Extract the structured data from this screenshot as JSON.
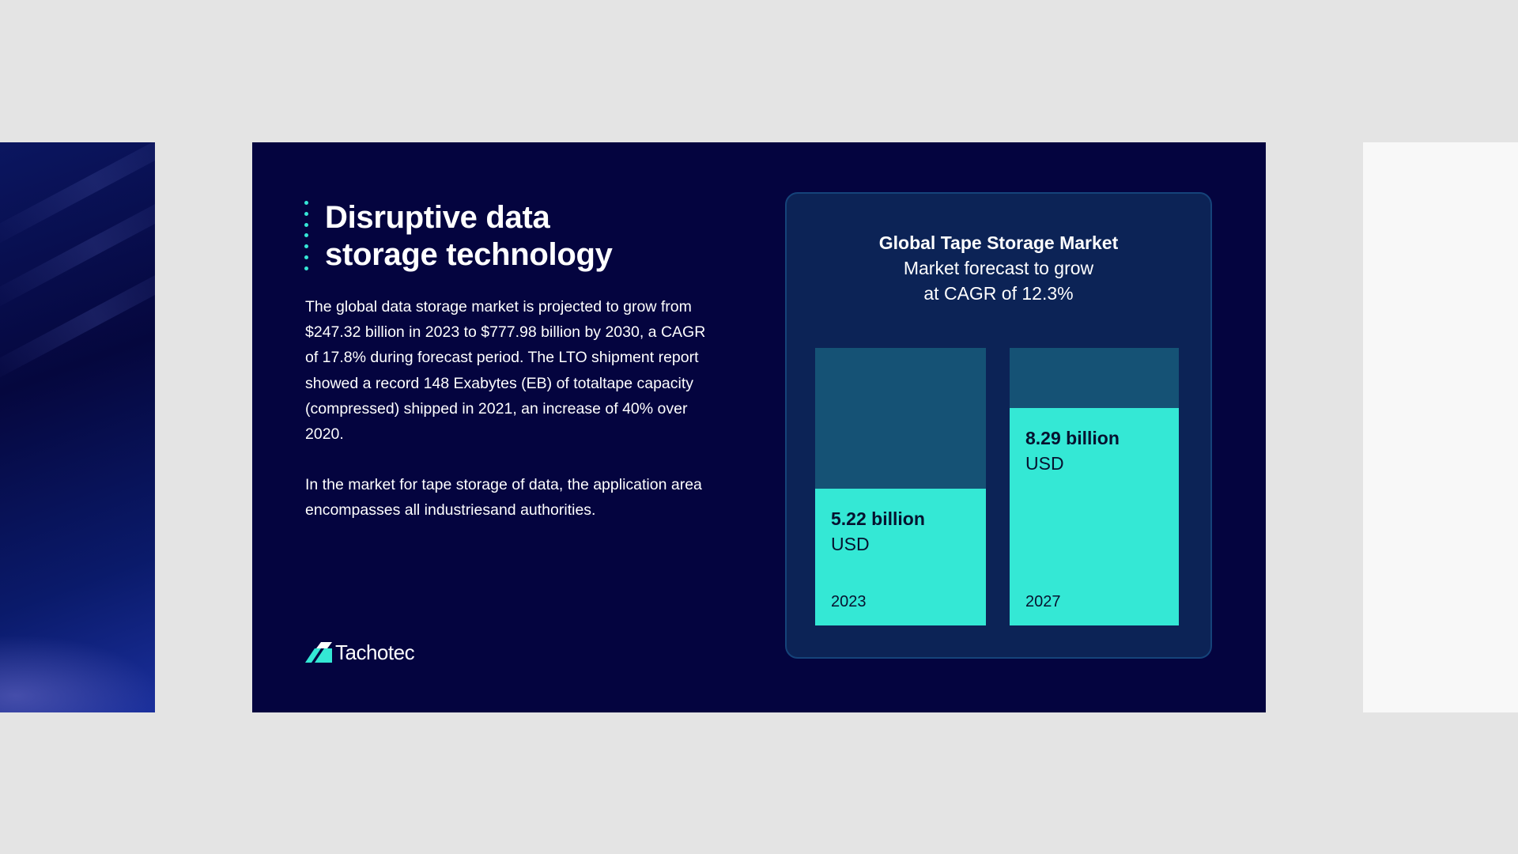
{
  "slide": {
    "title_line1": "Disruptive data",
    "title_line2": "storage technology",
    "paragraph1": "The global data storage market is projected to grow from $247.32 billion in 2023 to $777.98 billion by 2030, a CAGR of 17.8% during forecast period. The LTO shipment report showed a record 148 Exabytes (EB) of totaltape capacity (compressed) shipped in 2021, an increase of 40% over 2020.",
    "paragraph2": "In the market for tape storage of data, the application area encompasses all industriesand authorities.",
    "logo_text": "Tachotec"
  },
  "colors": {
    "slide_bg": "#04043f",
    "accent": "#34e8d5",
    "card_bg": "#0c2356",
    "bar_track": "#155275"
  },
  "chart_data": {
    "type": "bar",
    "title": "Global Tape Storage Market",
    "subtitle_line1": "Market forecast to grow",
    "subtitle_line2": "at CAGR of 12.3%",
    "categories": [
      "2023",
      "2027"
    ],
    "values": [
      5.22,
      8.29
    ],
    "value_labels": [
      "5.22 billion",
      "8.29 billion"
    ],
    "unit": "USD",
    "ylim": [
      0,
      10.6
    ]
  }
}
